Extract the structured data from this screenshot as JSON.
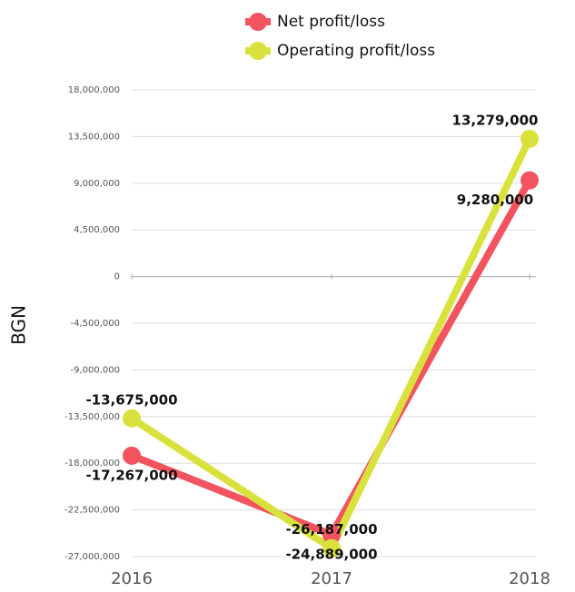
{
  "chart_data": {
    "type": "line",
    "y_label": "BGN",
    "categories": [
      "2016",
      "2017",
      "2018"
    ],
    "series": [
      {
        "name": "Net profit/loss",
        "color": "#f2545f",
        "values": [
          -17267000,
          -24889000,
          9280000
        ],
        "value_labels": [
          "-17,267,000",
          "-24,889,000",
          "9,280,000"
        ]
      },
      {
        "name": "Operating profit/loss",
        "color": "#d9e23c",
        "values": [
          -13675000,
          -26187000,
          13279000
        ],
        "value_labels": [
          "-13,675,000",
          "-26,187,000",
          "13,279,000"
        ]
      }
    ],
    "ylim": [
      -27000000,
      18000000
    ],
    "yticks": [
      {
        "value": -27000000,
        "label": "-27,000,000"
      },
      {
        "value": -22500000,
        "label": "-22,500,000"
      },
      {
        "value": -18000000,
        "label": "-18,000,000"
      },
      {
        "value": -13500000,
        "label": "-13,500,000"
      },
      {
        "value": -9000000,
        "label": "-9,000,000"
      },
      {
        "value": -4500000,
        "label": "-4,500,000"
      },
      0,
      {
        "value": 4500000,
        "label": "4,500,000"
      },
      {
        "value": 9000000,
        "label": "9,000,000"
      },
      {
        "value": 13500000,
        "label": "13,500,000"
      },
      {
        "value": 18000000,
        "label": "18,000,000"
      }
    ],
    "grid": true,
    "legend": "top"
  }
}
